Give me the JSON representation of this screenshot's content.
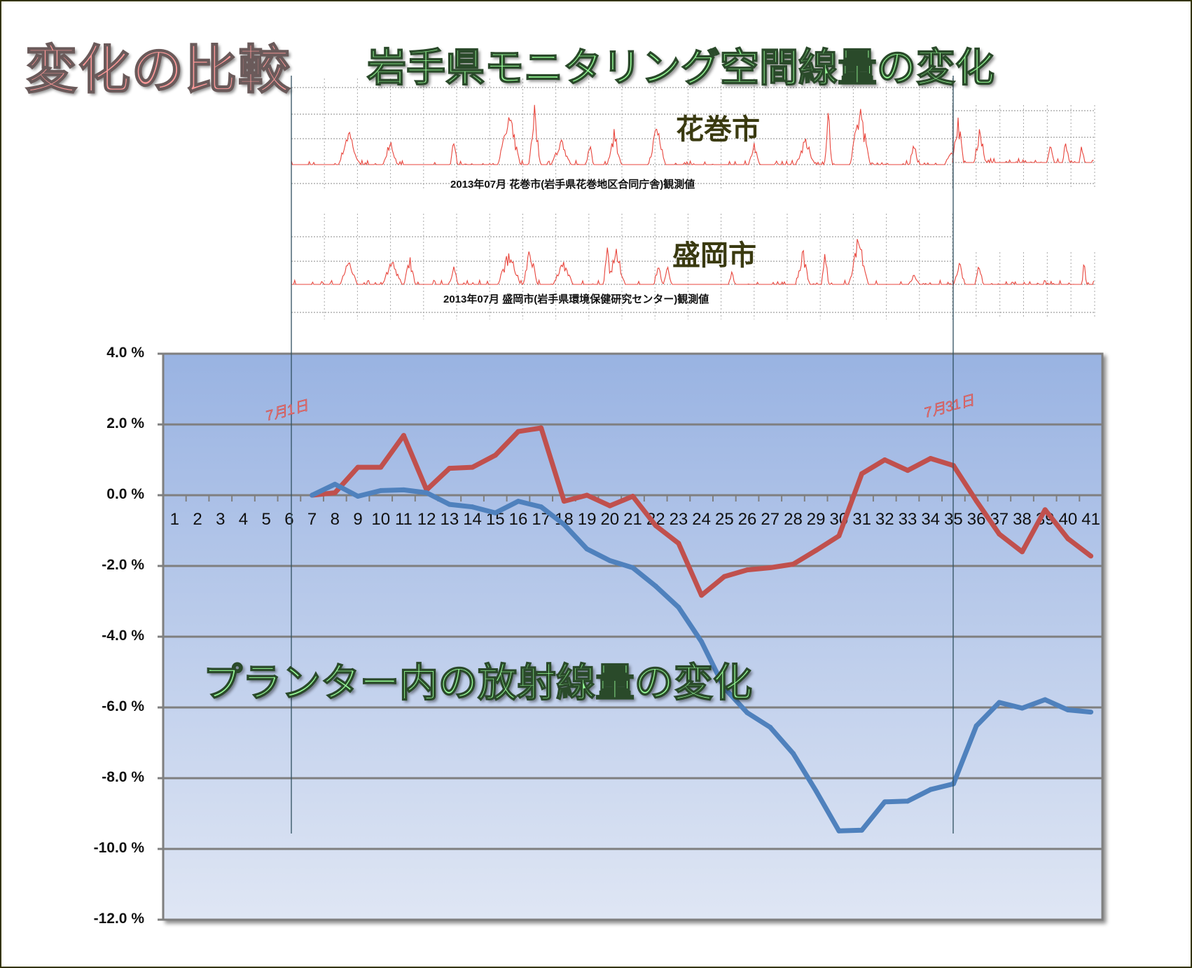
{
  "main_title": "変化の比較",
  "top_title": "岩手県モニタリング空間線量の変化",
  "bottom_title": "プランター内の放射線量の変化",
  "sparklines": [
    {
      "city": "花巻市",
      "caption": "2013年07月 花巻市(岩手県花巻地区合同庁舎)観測値"
    },
    {
      "city": "盛岡市",
      "caption": "2013年07月 盛岡市(岩手県環境保健研究センター)観測値"
    }
  ],
  "date_markers": {
    "start": "7月1日",
    "end": "7月31日"
  },
  "colors": {
    "series_red": "#c0504d",
    "series_blue": "#4f81bd",
    "sparkline": "#e8453c"
  },
  "chart_data": {
    "type": "line",
    "title": "プランター内の放射線量の変化",
    "xlabel": "",
    "ylabel": "",
    "ylim": [
      -12,
      4
    ],
    "yticks": [
      "4.0 %",
      "2.0 %",
      "0.0 %",
      "-2.0 %",
      "-4.0 %",
      "-6.0 %",
      "-8.0 %",
      "-10.0 %",
      "-12.0 %"
    ],
    "categories": [
      "1",
      "2",
      "3",
      "4",
      "5",
      "6",
      "7",
      "8",
      "9",
      "10",
      "11",
      "12",
      "13",
      "14",
      "15",
      "16",
      "17",
      "18",
      "19",
      "20",
      "21",
      "22",
      "23",
      "24",
      "25",
      "26",
      "27",
      "28",
      "29",
      "30",
      "31",
      "32",
      "33",
      "34",
      "35",
      "36",
      "37",
      "38",
      "39",
      "40",
      "41"
    ],
    "series": [
      {
        "name": "red",
        "values": [
          null,
          null,
          null,
          null,
          null,
          null,
          0.0,
          0.07,
          0.79,
          0.79,
          1.69,
          0.15,
          0.76,
          0.79,
          1.13,
          1.8,
          1.9,
          -0.17,
          0.0,
          -0.3,
          -0.03,
          -0.86,
          -1.36,
          -2.83,
          -2.3,
          -2.11,
          -2.05,
          -1.95,
          -1.56,
          -1.15,
          0.61,
          1.0,
          0.7,
          1.04,
          0.84,
          -0.16,
          -1.1,
          -1.6,
          -0.41,
          -1.23,
          -1.72
        ]
      },
      {
        "name": "blue",
        "values": [
          null,
          null,
          null,
          null,
          null,
          null,
          0.0,
          0.31,
          -0.03,
          0.13,
          0.15,
          0.07,
          -0.26,
          -0.33,
          -0.5,
          -0.17,
          -0.33,
          -0.83,
          -1.52,
          -1.85,
          -2.05,
          -2.57,
          -3.17,
          -4.14,
          -5.45,
          -6.15,
          -6.56,
          -7.3,
          -8.36,
          -9.49,
          -9.47,
          -8.67,
          -8.65,
          -8.32,
          -8.16,
          -6.52,
          -5.86,
          -6.02,
          -5.78,
          -6.07,
          -6.13
        ]
      }
    ],
    "grid": true,
    "legend": "none"
  }
}
